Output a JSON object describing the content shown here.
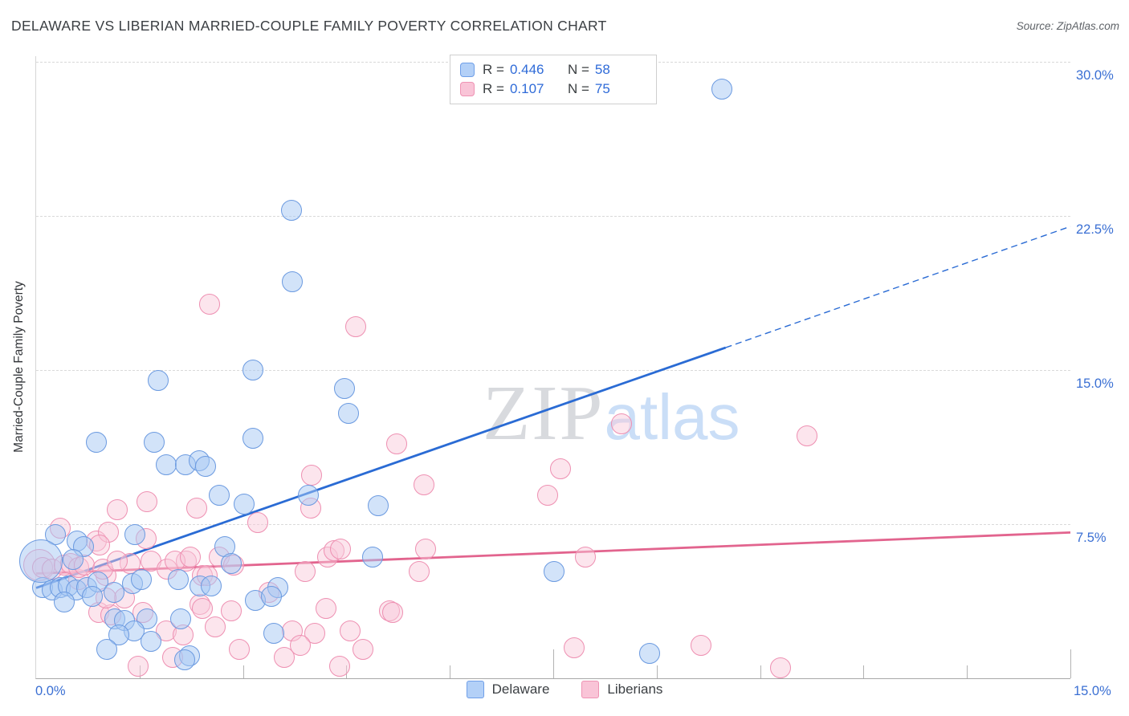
{
  "header": {
    "title": "DELAWARE VS LIBERIAN MARRIED-COUPLE FAMILY POVERTY CORRELATION CHART",
    "source": "Source: ZipAtlas.com"
  },
  "y_axis": {
    "label": "Married-Couple Family Poverty",
    "ticks": [
      {
        "label": "30.0%",
        "value": 30
      },
      {
        "label": "22.5%",
        "value": 22.5
      },
      {
        "label": "15.0%",
        "value": 15
      },
      {
        "label": "7.5%",
        "value": 7.5
      }
    ]
  },
  "x_axis": {
    "left_label": "0.0%",
    "right_label": "15.0%",
    "min": 0,
    "max": 15,
    "minor_tick_step": 1.5,
    "major_ticks": [
      7.5,
      15
    ]
  },
  "legend_box": {
    "rows": [
      {
        "series": "Delaware",
        "r_label": "R =",
        "r_value": "0.446",
        "n_label": "N =",
        "n_value": "58"
      },
      {
        "series": "Liberians",
        "r_label": "R =",
        "r_value": "0.107",
        "n_label": "N =",
        "n_value": "75"
      }
    ]
  },
  "bottom_legend": {
    "items": [
      {
        "label": "Delaware",
        "color": "#b3d0f7"
      },
      {
        "label": "Liberians",
        "color": "#f9c4d7"
      }
    ]
  },
  "watermark": {
    "zip": "ZIP",
    "atlas": "atlas"
  },
  "colors": {
    "delaware_fill": "#a6c8f3",
    "delaware_stroke": "#6b9ae0",
    "delaware_trend": "#2a6bd4",
    "liberians_fill": "#f9c9da",
    "liberians_stroke": "#ee90b2",
    "liberians_trend": "#e2648e",
    "axis_text": "#3a6fd3",
    "grid": "#d9d9d9",
    "title_text": "#3b3f43"
  },
  "chart_data": {
    "type": "scatter",
    "xlabel": "",
    "ylabel": "Married-Couple Family Poverty",
    "x_range": [
      0,
      15
    ],
    "y_range": [
      0,
      30
    ],
    "grid": "horizontal-dashed",
    "legend_position": "top-center and bottom-center",
    "series": [
      {
        "name": "Delaware",
        "R": 0.446,
        "N": 58,
        "trend_solid": [
          [
            0,
            4.4
          ],
          [
            10.0,
            16.1
          ]
        ],
        "trend_dashed": [
          [
            10.0,
            16.1
          ],
          [
            15.0,
            22.0
          ]
        ],
        "points": [
          [
            9.94,
            28.7
          ],
          [
            3.7,
            22.8
          ],
          [
            3.72,
            19.3
          ],
          [
            3.14,
            15.0
          ],
          [
            1.77,
            14.5
          ],
          [
            4.47,
            14.1
          ],
          [
            4.53,
            12.9
          ],
          [
            0.87,
            11.5
          ],
          [
            1.71,
            11.5
          ],
          [
            3.14,
            11.7
          ],
          [
            1.89,
            10.4
          ],
          [
            2.17,
            10.4
          ],
          [
            2.36,
            10.6
          ],
          [
            2.46,
            10.3
          ],
          [
            2.66,
            8.9
          ],
          [
            3.02,
            8.5
          ],
          [
            3.95,
            8.9
          ],
          [
            4.96,
            8.4
          ],
          [
            0.28,
            7.0
          ],
          [
            0.59,
            6.7
          ],
          [
            0.69,
            6.4
          ],
          [
            1.43,
            7.0
          ],
          [
            2.74,
            6.4
          ],
          [
            2.83,
            5.6
          ],
          [
            4.88,
            5.9
          ],
          [
            7.51,
            5.2
          ],
          [
            0.09,
            4.4
          ],
          [
            0.23,
            4.3
          ],
          [
            0.35,
            4.4
          ],
          [
            0.47,
            4.5
          ],
          [
            0.58,
            4.3
          ],
          [
            0.73,
            4.4
          ],
          [
            0.41,
            3.7
          ],
          [
            0.9,
            4.7
          ],
          [
            1.13,
            4.2
          ],
          [
            1.4,
            4.6
          ],
          [
            1.52,
            4.8
          ],
          [
            2.06,
            4.8
          ],
          [
            2.37,
            4.5
          ],
          [
            2.54,
            4.5
          ],
          [
            3.51,
            4.4
          ],
          [
            0.82,
            4.0
          ],
          [
            1.14,
            2.9
          ],
          [
            1.28,
            2.8
          ],
          [
            1.61,
            2.9
          ],
          [
            2.1,
            2.9
          ],
          [
            1.42,
            2.3
          ],
          [
            1.2,
            2.1
          ],
          [
            1.67,
            1.8
          ],
          [
            1.03,
            1.4
          ],
          [
            2.22,
            1.1
          ],
          [
            3.45,
            2.2
          ],
          [
            3.18,
            3.8
          ],
          [
            8.9,
            1.2
          ],
          [
            0.07,
            5.7,
            27
          ],
          [
            0.54,
            5.8
          ],
          [
            2.16,
            0.9
          ],
          [
            3.41,
            4.0
          ]
        ]
      },
      {
        "name": "Liberians",
        "R": 0.107,
        "N": 75,
        "trend_solid": [
          [
            0,
            5.1
          ],
          [
            15.0,
            7.1
          ]
        ],
        "trend_dashed": null,
        "points": [
          [
            2.51,
            18.2
          ],
          [
            4.64,
            17.1
          ],
          [
            5.23,
            11.4
          ],
          [
            5.63,
            9.4
          ],
          [
            3.99,
            9.9
          ],
          [
            3.98,
            8.3
          ],
          [
            7.61,
            10.2
          ],
          [
            7.42,
            8.9
          ],
          [
            8.49,
            12.4
          ],
          [
            11.18,
            11.8
          ],
          [
            3.21,
            7.6
          ],
          [
            1.18,
            8.2
          ],
          [
            1.61,
            8.6
          ],
          [
            2.33,
            8.3
          ],
          [
            0.35,
            7.3
          ],
          [
            0.87,
            6.7
          ],
          [
            1.05,
            7.1
          ],
          [
            0.92,
            6.5
          ],
          [
            1.6,
            6.8
          ],
          [
            0.62,
            4.8
          ],
          [
            1.01,
            5.0
          ],
          [
            1.28,
            3.9
          ],
          [
            1.67,
            5.7
          ],
          [
            1.9,
            5.3
          ],
          [
            2.18,
            5.7
          ],
          [
            2.02,
            5.7
          ],
          [
            2.24,
            5.9
          ],
          [
            2.65,
            5.9
          ],
          [
            2.86,
            5.5
          ],
          [
            0.91,
            3.2
          ],
          [
            1.08,
            3.1
          ],
          [
            1.55,
            3.2
          ],
          [
            2.37,
            3.6
          ],
          [
            2.41,
            3.4
          ],
          [
            2.6,
            2.5
          ],
          [
            2.83,
            3.3
          ],
          [
            2.95,
            1.4
          ],
          [
            1.98,
            1.0
          ],
          [
            1.48,
            0.6
          ],
          [
            3.38,
            4.2
          ],
          [
            3.9,
            5.2
          ],
          [
            4.23,
            5.9
          ],
          [
            4.32,
            6.2
          ],
          [
            4.41,
            6.3
          ],
          [
            3.72,
            2.3
          ],
          [
            4.04,
            2.2
          ],
          [
            4.55,
            2.3
          ],
          [
            3.83,
            1.6
          ],
          [
            4.74,
            1.4
          ],
          [
            3.6,
            1.0
          ],
          [
            4.4,
            0.6
          ],
          [
            5.12,
            3.3
          ],
          [
            5.17,
            3.2
          ],
          [
            4.21,
            3.4
          ],
          [
            5.55,
            5.2
          ],
          [
            5.65,
            6.3
          ],
          [
            7.97,
            5.9
          ],
          [
            7.8,
            1.5
          ],
          [
            9.64,
            1.6
          ],
          [
            10.79,
            0.5
          ],
          [
            0.05,
            5.5,
            20
          ],
          [
            0.09,
            5.4
          ],
          [
            0.23,
            5.3
          ],
          [
            0.41,
            5.5
          ],
          [
            0.5,
            5.6
          ],
          [
            0.62,
            5.4
          ],
          [
            0.7,
            5.5
          ],
          [
            0.97,
            5.3
          ],
          [
            1.36,
            5.6
          ],
          [
            1.18,
            5.7
          ],
          [
            1.89,
            2.3
          ],
          [
            2.13,
            2.1
          ],
          [
            2.41,
            5.0
          ],
          [
            1.01,
            3.9
          ],
          [
            2.48,
            5.0
          ]
        ]
      }
    ]
  }
}
